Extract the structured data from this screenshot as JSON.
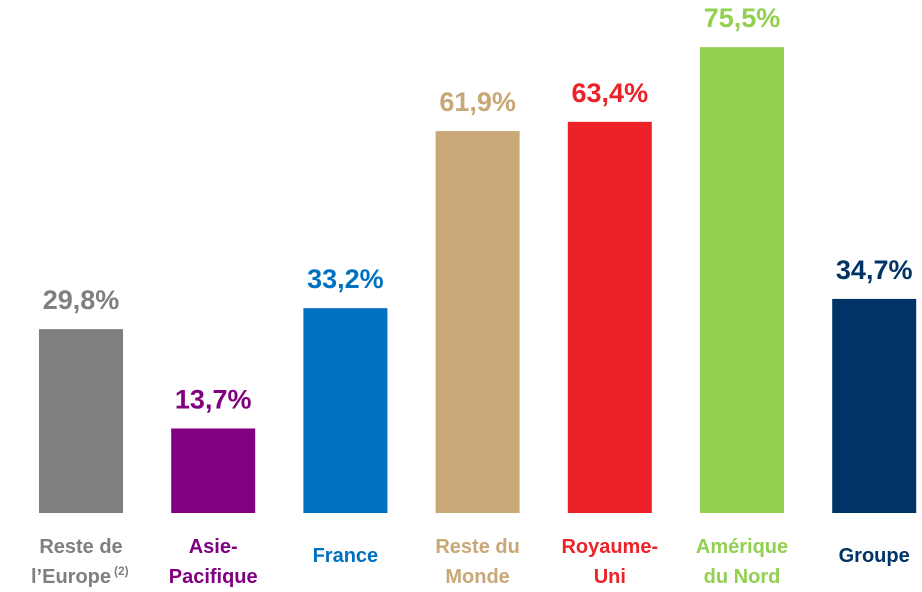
{
  "chart_data": {
    "type": "bar",
    "categories": [
      [
        "Reste de",
        "l’Europe"
      ],
      [
        "Asie-",
        "Pacifique"
      ],
      [
        "France"
      ],
      [
        "Reste du",
        "Monde"
      ],
      [
        "Royaume-",
        "Uni"
      ],
      [
        "Amérique",
        "du Nord"
      ],
      [
        "Groupe"
      ]
    ],
    "category_superscripts": {
      "0": "(2)"
    },
    "values": [
      29.8,
      13.7,
      33.2,
      61.9,
      63.4,
      75.5,
      34.7
    ],
    "value_labels": [
      "29,8%",
      "13,7%",
      "33,2%",
      "61,9%",
      "63,4%",
      "75,5%",
      "34,7%"
    ],
    "colors": [
      "#7f7f7f",
      "#800080",
      "#0070c0",
      "#c8a876",
      "#ed2228",
      "#92d050",
      "#003366"
    ],
    "ylim": [
      0,
      80
    ]
  }
}
